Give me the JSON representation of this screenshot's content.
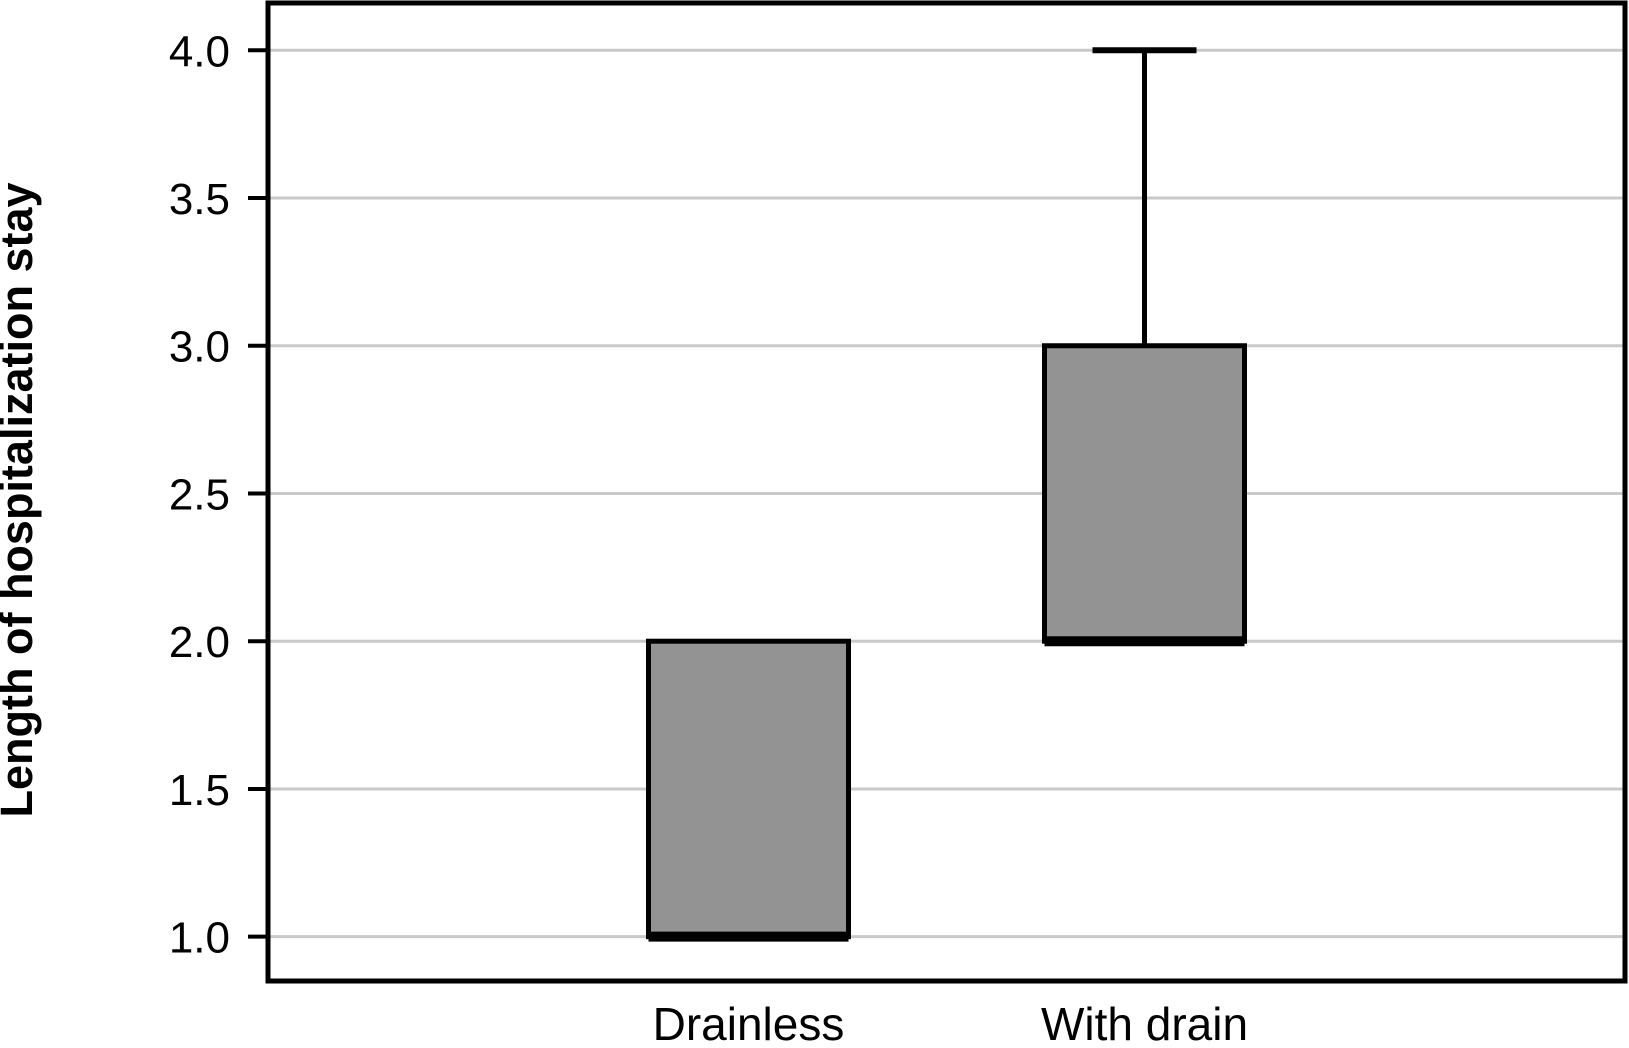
{
  "chart_data": {
    "type": "boxplot",
    "title": "",
    "ylabel": "Length of hospitalization stay",
    "xlabel": "",
    "categories": [
      "Drainless",
      "With drain"
    ],
    "yticks": [
      1.0,
      1.5,
      2.0,
      2.5,
      3.0,
      3.5,
      4.0
    ],
    "ytick_labels": [
      "1.0",
      "1.5",
      "2.0",
      "2.5",
      "3.0",
      "3.5",
      "4.0"
    ],
    "ylim": [
      0.85,
      4.16
    ],
    "grid": true,
    "legend": false,
    "series": [
      {
        "name": "Drainless",
        "whisker_low": 1.0,
        "q1": 1.0,
        "median": 1.0,
        "q3": 2.0,
        "whisker_high": 2.0
      },
      {
        "name": "With drain",
        "whisker_low": 2.0,
        "q1": 2.0,
        "median": 2.0,
        "q3": 3.0,
        "whisker_high": 4.0
      }
    ],
    "colors": {
      "box_fill": "#939393",
      "box_border": "#000000",
      "median": "#000000",
      "whisker": "#000000",
      "gridline": "#c9c9c9",
      "frame": "#000000",
      "text": "#000000"
    }
  }
}
